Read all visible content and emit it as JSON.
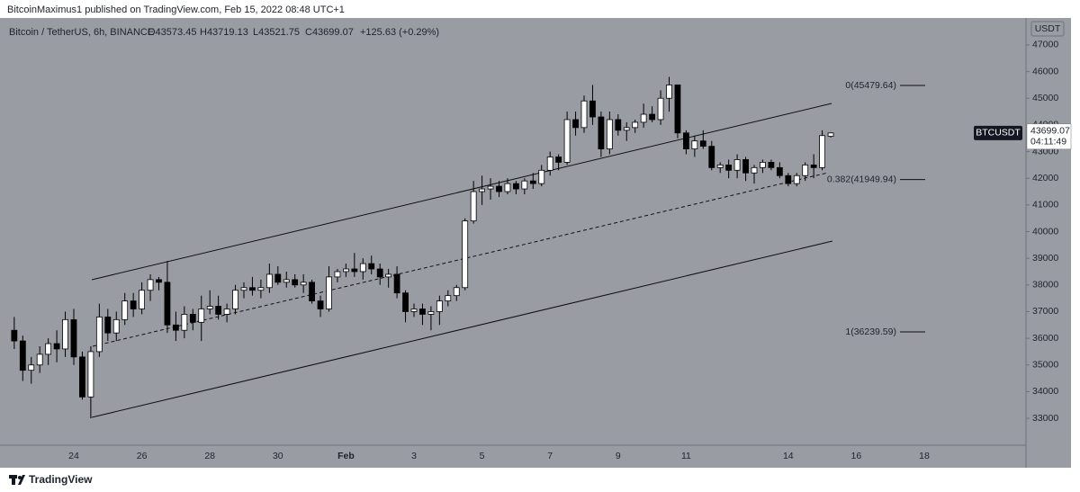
{
  "header": {
    "publisher": "BitcoinMaximus1 published on TradingView.com, Feb 15, 2022 08:48 UTC+1",
    "footer": "TradingView"
  },
  "chart_data": {
    "type": "candlestick",
    "title": "Bitcoin / TetherUS, 6h, BINANCE",
    "legend_values": [
      "O43573.45",
      "H43719.13",
      "L43521.75",
      "C43699.07",
      "+125.63 (+0.29%)"
    ],
    "currency": "USDT",
    "symbol": "BTCUSDT",
    "last_price_label": "43699.07",
    "countdown": "04:11:49",
    "categories": [
      null,
      null,
      null,
      null,
      null,
      null,
      null,
      "24",
      null,
      null,
      null,
      null,
      null,
      null,
      null,
      "26",
      null,
      null,
      null,
      null,
      null,
      null,
      null,
      "28",
      null,
      null,
      null,
      null,
      null,
      null,
      null,
      "30",
      null,
      null,
      null,
      null,
      null,
      null,
      null,
      "Feb",
      null,
      null,
      null,
      null,
      null,
      null,
      null,
      "3",
      null,
      null,
      null,
      null,
      null,
      null,
      null,
      "5",
      null,
      null,
      null,
      null,
      null,
      null,
      null,
      "7",
      null,
      null,
      null,
      null,
      null,
      null,
      null,
      "9",
      null,
      null,
      null,
      null,
      null,
      null,
      null,
      "11",
      null,
      null,
      null,
      null,
      null,
      null,
      null,
      null,
      null,
      null,
      null,
      "14",
      null,
      null,
      null,
      null,
      null,
      null,
      null,
      "16",
      null,
      null,
      null,
      null,
      null,
      null,
      null,
      "18"
    ],
    "open": [
      36300,
      35900,
      34800,
      35000,
      35400,
      35800,
      35600,
      36700,
      35300,
      33800,
      35500,
      36800,
      36200,
      36700,
      37400,
      37100,
      37800,
      38200,
      38100,
      36500,
      36300,
      36900,
      36600,
      37100,
      37200,
      36900,
      37100,
      37800,
      37900,
      37800,
      37900,
      38400,
      38100,
      38200,
      38000,
      38100,
      37400,
      37100,
      38300,
      38500,
      38600,
      38500,
      38800,
      38600,
      38300,
      38400,
      37700,
      37000,
      37100,
      36900,
      37000,
      37400,
      37600,
      37900,
      40400,
      41500,
      41600,
      41700,
      41500,
      41800,
      41600,
      41900,
      41800,
      42300,
      42800,
      42600,
      44200,
      43900,
      44900,
      44300,
      43100,
      44200,
      43800,
      43900,
      44100,
      44400,
      44200,
      45000,
      45500,
      43700,
      43100,
      43400,
      43200,
      42400,
      42500,
      42300,
      42700,
      42200,
      42400,
      42600,
      42400,
      42100,
      41800,
      42100,
      42500,
      42400,
      43573.45,
      null,
      null,
      null,
      null,
      null,
      null,
      null,
      null,
      null,
      null,
      null
    ],
    "high": [
      36800,
      36100,
      35300,
      35700,
      36000,
      36300,
      37000,
      37100,
      35500,
      35700,
      37300,
      37100,
      37000,
      37700,
      37700,
      38100,
      38400,
      38300,
      38900,
      37000,
      37200,
      37100,
      37600,
      37800,
      37600,
      37300,
      38000,
      38100,
      38300,
      38200,
      38800,
      38700,
      38500,
      38400,
      38400,
      38200,
      37600,
      38700,
      38600,
      38800,
      39200,
      39000,
      39100,
      38800,
      38600,
      38700,
      37800,
      37300,
      37300,
      37200,
      37600,
      37800,
      38000,
      40500,
      41900,
      42100,
      42000,
      41900,
      42000,
      41900,
      42000,
      42200,
      42500,
      43000,
      42900,
      44500,
      44500,
      45100,
      45500,
      44500,
      44500,
      44400,
      44100,
      44200,
      44800,
      44700,
      45300,
      45800,
      45500,
      43800,
      43600,
      43800,
      43400,
      42600,
      42700,
      42900,
      42800,
      42500,
      42700,
      42700,
      42600,
      42200,
      42200,
      42600,
      42900,
      43800,
      43719.13,
      null,
      null,
      null,
      null,
      null,
      null,
      null,
      null,
      null,
      null,
      null
    ],
    "low": [
      35600,
      34400,
      34300,
      34700,
      35000,
      35100,
      35300,
      35000,
      33700,
      33000,
      35300,
      35900,
      35900,
      36500,
      36800,
      36900,
      37400,
      37800,
      36200,
      35900,
      36000,
      36300,
      35900,
      36900,
      36700,
      36600,
      36900,
      37500,
      37600,
      37500,
      37700,
      38000,
      37900,
      37900,
      37700,
      37300,
      36800,
      37000,
      38100,
      38300,
      38300,
      38200,
      38400,
      38000,
      37900,
      37500,
      36600,
      36800,
      36500,
      36300,
      36500,
      37200,
      37400,
      37800,
      40300,
      41000,
      41200,
      41300,
      41400,
      41400,
      41400,
      41600,
      41700,
      42100,
      42300,
      42500,
      43600,
      43700,
      44000,
      42800,
      42900,
      43600,
      43400,
      43700,
      43900,
      44100,
      44000,
      44500,
      43500,
      42900,
      42800,
      43100,
      42300,
      42200,
      42000,
      42000,
      41900,
      41800,
      42200,
      42300,
      42000,
      41700,
      41700,
      41900,
      42000,
      42300,
      43521.75,
      null,
      null,
      null,
      null,
      null,
      null,
      null,
      null,
      null,
      null,
      null
    ],
    "close": [
      35900,
      34800,
      35000,
      35400,
      35800,
      35600,
      36700,
      35300,
      33800,
      35500,
      36800,
      36200,
      36700,
      37400,
      37100,
      37800,
      38200,
      38100,
      36500,
      36300,
      36900,
      36600,
      37100,
      37200,
      36900,
      37100,
      37800,
      37900,
      37800,
      37900,
      38400,
      38100,
      38200,
      38000,
      38100,
      37400,
      37100,
      38300,
      38500,
      38600,
      38500,
      38800,
      38600,
      38300,
      38400,
      37700,
      37000,
      37100,
      36900,
      37000,
      37400,
      37600,
      37900,
      40400,
      41500,
      41600,
      41700,
      41500,
      41800,
      41600,
      41900,
      41800,
      42300,
      42800,
      42600,
      44200,
      43900,
      44900,
      44300,
      43100,
      44200,
      43800,
      43900,
      44100,
      44400,
      44200,
      45000,
      45500,
      43700,
      43100,
      43400,
      43200,
      42400,
      42500,
      42300,
      42700,
      42200,
      42400,
      42600,
      42400,
      42100,
      41800,
      42100,
      42500,
      42400,
      43600,
      43699.07,
      null,
      null,
      null,
      null,
      null,
      null,
      null,
      null,
      null,
      null,
      null
    ],
    "up_color": "#ffffff",
    "down_color": "#000000",
    "wick_color": "#000000",
    "ylim": [
      31990,
      48010
    ],
    "yticks": [
      33000,
      34000,
      35000,
      36000,
      37000,
      38000,
      39000,
      40000,
      41000,
      42000,
      43000,
      44000,
      45000,
      46000,
      47000
    ],
    "grid": false,
    "fib_levels": [
      {
        "value": 45479.64,
        "label": "0(45479.64)"
      },
      {
        "value": 41949.94,
        "label": "0.382(41949.94)"
      },
      {
        "value": 36239.59,
        "label": "1(36239.59)"
      }
    ]
  }
}
